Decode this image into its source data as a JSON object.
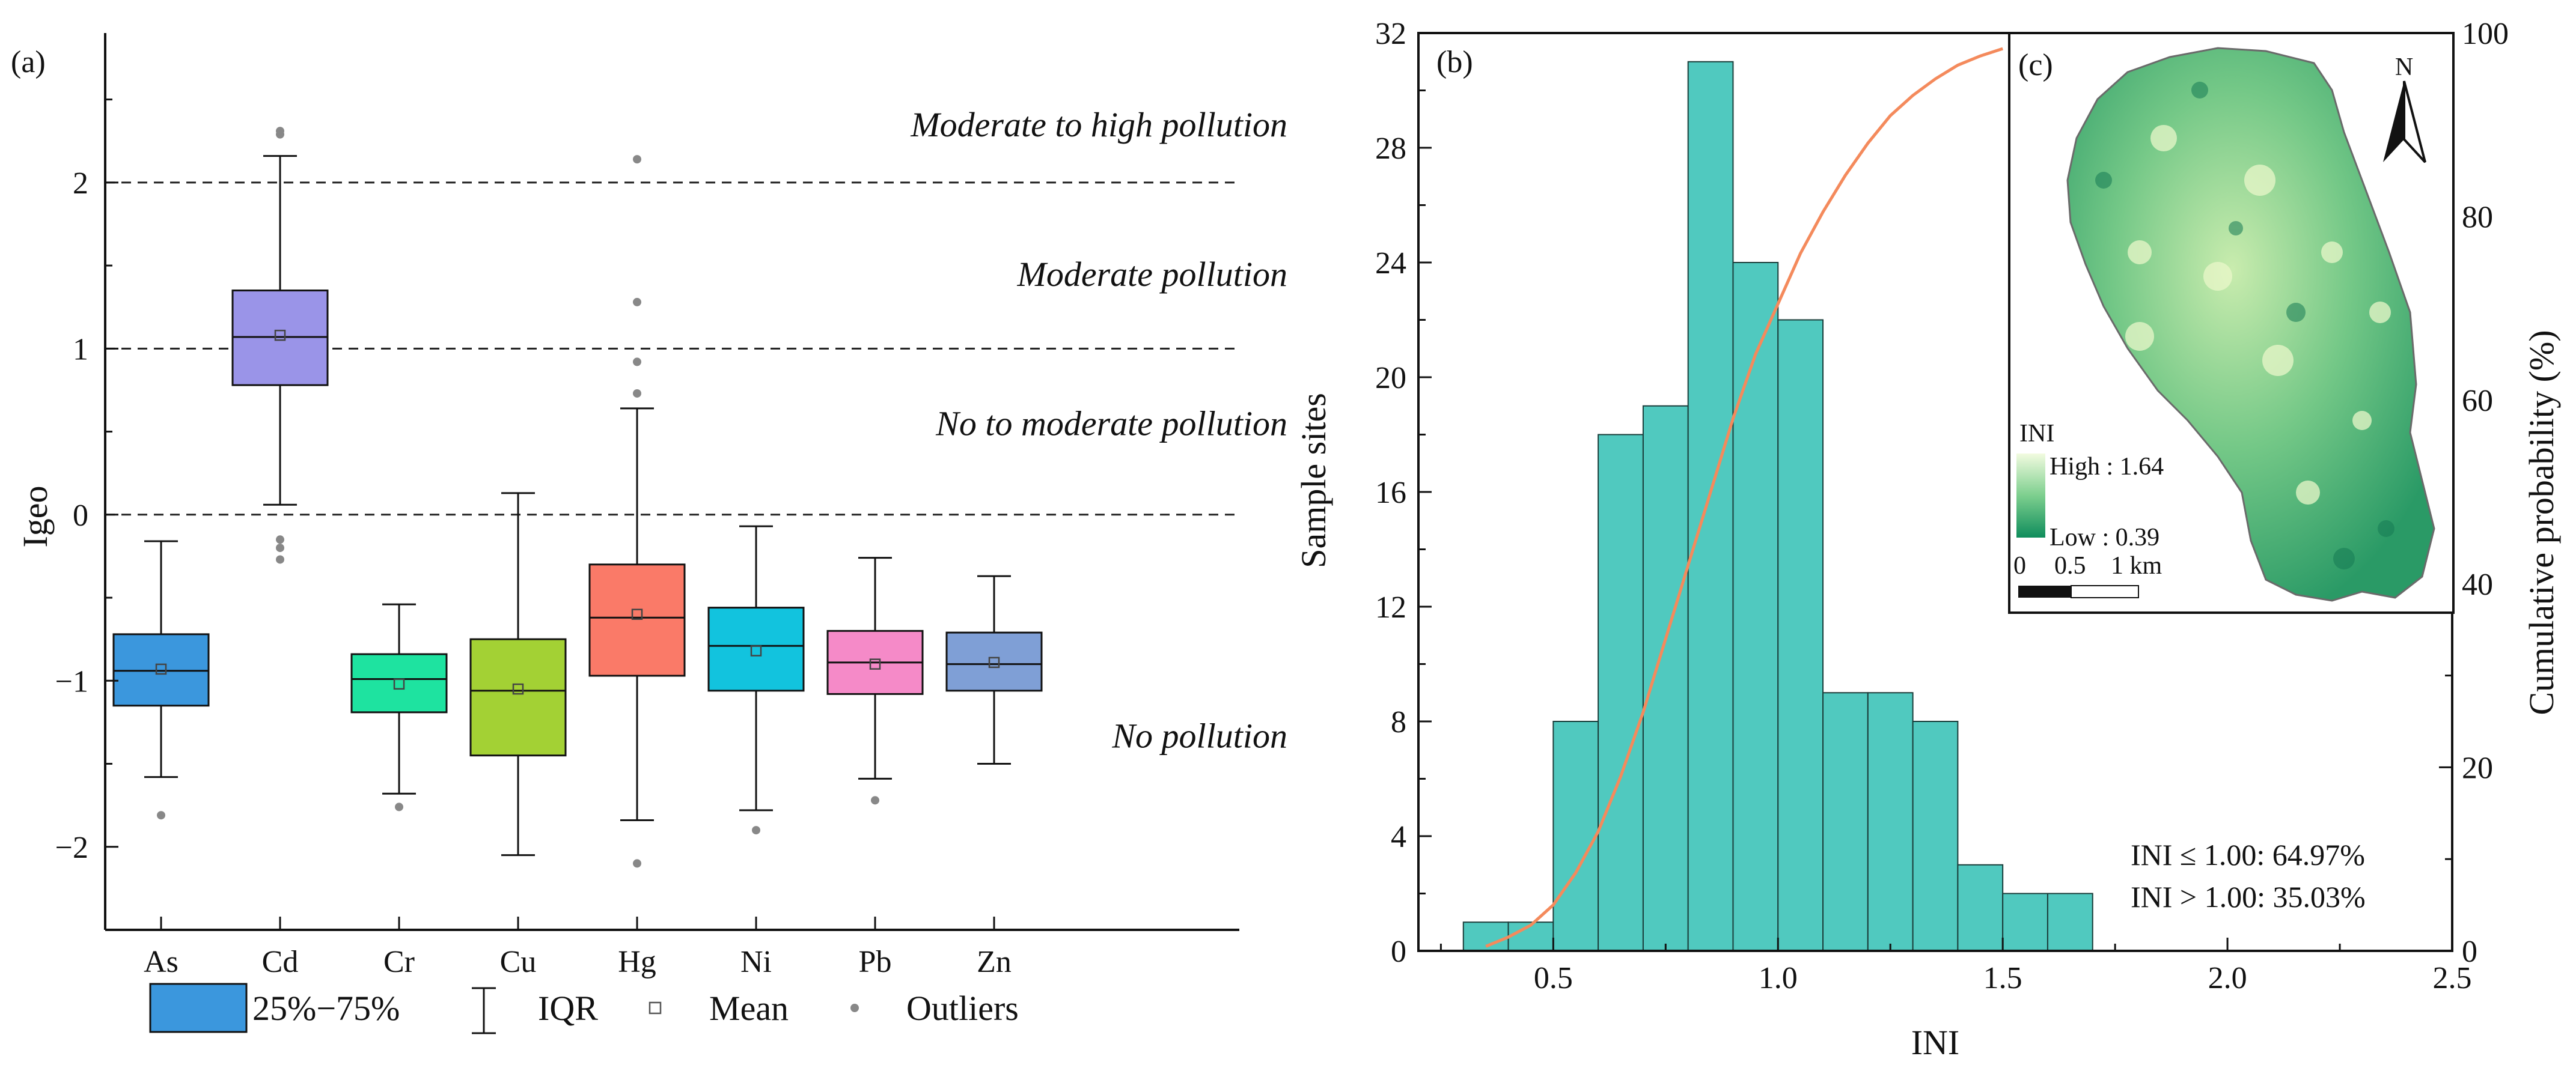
{
  "panel_labels": {
    "a": "(a)",
    "b": "(b)",
    "c": "(c)"
  },
  "pollution_zones": [
    {
      "label": "Moderate to high pollution",
      "y": 2.35
    },
    {
      "label": "Moderate pollution",
      "y": 1.45
    },
    {
      "label": "No to moderate pollution",
      "y": 0.55
    },
    {
      "label": "No pollution",
      "y": -1.33
    }
  ],
  "legend": {
    "box": "25%−75%",
    "iqr": "IQR",
    "mean": "Mean",
    "outliers": "Outliers",
    "box_color": "#3b97dd"
  },
  "stats": {
    "line1": "INI ≤ 1.00: 64.97%",
    "line2": "INI > 1.00: 35.03%"
  },
  "inset": {
    "legend_title": "INI",
    "high": "High : 1.64",
    "low": "Low : 0.39",
    "scale": [
      "0",
      "0.5",
      "1 km"
    ],
    "north": "N"
  },
  "chart_data": [
    {
      "type": "box",
      "panel": "(a)",
      "ylabel": "Igeo",
      "xlabel": "",
      "ylim": [
        -2.5,
        2.9
      ],
      "yticks": [
        -2,
        -1,
        0,
        1,
        2
      ],
      "ytick_labels": [
        "−2",
        "−1",
        "0",
        "1",
        "2"
      ],
      "thresholds": [
        0,
        1,
        2
      ],
      "categories": [
        "As",
        "Cd",
        "Cr",
        "Cu",
        "Hg",
        "Ni",
        "Pb",
        "Zn"
      ],
      "series": [
        {
          "name": "As",
          "color": "#3b97dd",
          "q1": -1.15,
          "median": -0.94,
          "q3": -0.72,
          "mean": -0.93,
          "whisker_low": -1.58,
          "whisker_high": -0.16,
          "outliers": [
            -1.81
          ]
        },
        {
          "name": "Cd",
          "color": "#9a94e8",
          "q1": 0.78,
          "median": 1.07,
          "q3": 1.35,
          "mean": 1.08,
          "whisker_low": 0.06,
          "whisker_high": 2.16,
          "outliers": [
            2.29,
            2.31,
            -0.15,
            -0.2,
            -0.27
          ]
        },
        {
          "name": "Cr",
          "color": "#1ee3a0",
          "q1": -1.19,
          "median": -0.99,
          "q3": -0.84,
          "mean": -1.02,
          "whisker_low": -1.68,
          "whisker_high": -0.54,
          "outliers": [
            -1.76
          ]
        },
        {
          "name": "Cu",
          "color": "#a3d134",
          "q1": -1.45,
          "median": -1.06,
          "q3": -0.75,
          "mean": -1.05,
          "whisker_low": -2.05,
          "whisker_high": 0.13,
          "outliers": []
        },
        {
          "name": "Hg",
          "color": "#fa7a68",
          "q1": -0.97,
          "median": -0.62,
          "q3": -0.3,
          "mean": -0.6,
          "whisker_low": -1.84,
          "whisker_high": 0.64,
          "outliers": [
            2.14,
            1.28,
            0.92,
            0.73,
            -2.1
          ]
        },
        {
          "name": "Ni",
          "color": "#12c3de",
          "q1": -1.06,
          "median": -0.79,
          "q3": -0.56,
          "mean": -0.82,
          "whisker_low": -1.78,
          "whisker_high": -0.07,
          "outliers": [
            -1.9
          ]
        },
        {
          "name": "Pb",
          "color": "#f58ac8",
          "q1": -1.08,
          "median": -0.89,
          "q3": -0.7,
          "mean": -0.9,
          "whisker_low": -1.59,
          "whisker_high": -0.26,
          "outliers": [
            -1.72
          ]
        },
        {
          "name": "Zn",
          "color": "#7f9fd6",
          "q1": -1.06,
          "median": -0.9,
          "q3": -0.71,
          "mean": -0.89,
          "whisker_low": -1.5,
          "whisker_high": -0.37,
          "outliers": []
        }
      ]
    },
    {
      "type": "histogram",
      "panel": "(b)",
      "xlabel": "INI",
      "ylabel": "Sample sites",
      "y2label": "Cumulative probability (%)",
      "xlim": [
        0.2,
        2.5
      ],
      "ylim": [
        0,
        32
      ],
      "y2lim": [
        0,
        100
      ],
      "xticks": [
        0.5,
        1.0,
        1.5,
        2.0,
        2.5
      ],
      "xtick_labels": [
        "0.5",
        "1.0",
        "1.5",
        "2.0",
        "2.5"
      ],
      "yticks": [
        0,
        4,
        8,
        12,
        16,
        20,
        24,
        28,
        32
      ],
      "ytick_labels": [
        "0",
        "4",
        "8",
        "12",
        "16",
        "20",
        "24",
        "28",
        "32"
      ],
      "y2ticks": [
        20,
        40,
        60,
        80,
        100
      ],
      "y2tick_labels": [
        "20",
        "40",
        "60",
        "80",
        "100"
      ],
      "bin_width": 0.1,
      "bin_starts": [
        0.3,
        0.4,
        0.5,
        0.6,
        0.7,
        0.8,
        0.9,
        1.0,
        1.1,
        1.2,
        1.3,
        1.4,
        1.5,
        1.6
      ],
      "counts": [
        1,
        1,
        8,
        18,
        19,
        31,
        24,
        22,
        9,
        9,
        8,
        3,
        2,
        2
      ],
      "bar_color": "#50c9bf",
      "cumulative_curve": {
        "name": "Cumulative probability",
        "color": "#f48a5c",
        "x": [
          0.35,
          0.4,
          0.45,
          0.5,
          0.55,
          0.6,
          0.65,
          0.7,
          0.75,
          0.8,
          0.85,
          0.9,
          0.95,
          1.0,
          1.05,
          1.1,
          1.15,
          1.2,
          1.25,
          1.3,
          1.35,
          1.4,
          1.45,
          1.5
        ],
        "y": [
          0.5,
          1.5,
          2.8,
          5,
          8.5,
          13,
          19,
          26,
          34,
          42,
          50,
          58,
          65,
          70.5,
          76,
          80.5,
          84.5,
          88,
          91,
          93.2,
          95,
          96.5,
          97.5,
          98.3
        ]
      }
    }
  ]
}
